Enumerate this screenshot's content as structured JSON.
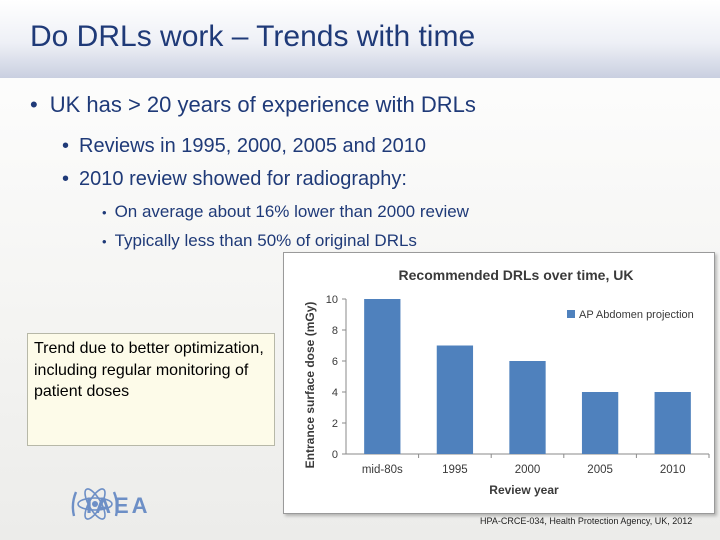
{
  "slide": {
    "title": "Do DRLs work – Trends with time",
    "bullet1": "UK has > 20 years of experience with DRLs",
    "sub_bullets": [
      "Reviews in 1995, 2000, 2005 and 2010",
      "2010 review showed for radiography:"
    ],
    "sub_sub_bullets": [
      "On average about 16% lower than 2000 review",
      "Typically less than 50% of original DRLs"
    ],
    "bullet_glyph": "•",
    "callout": "Trend due to better optimization, including regular monitoring of patient doses",
    "logo_text": "IAEA",
    "footer": "HPA-CRCE-034, Health Protection Agency, UK, 2012"
  },
  "chart_data": {
    "type": "bar",
    "title": "Recommended DRLs over time, UK",
    "xlabel": "Review year",
    "ylabel": "Entrance surface dose (mGy)",
    "categories": [
      "mid-80s",
      "1995",
      "2000",
      "2005",
      "2010"
    ],
    "series": [
      {
        "name": "AP Abdomen projection",
        "values": [
          10,
          7,
          6,
          4,
          4
        ],
        "color": "#4f81bd"
      }
    ],
    "ylim": [
      0,
      10
    ],
    "yticks": [
      0,
      2,
      4,
      6,
      8,
      10
    ],
    "grid": false,
    "legend": "top-right"
  },
  "colors": {
    "title_text": "#1f3a78",
    "bar": "#4f81bd",
    "callout_bg": "#fdfbe9",
    "logo": "#6d8fc6"
  }
}
